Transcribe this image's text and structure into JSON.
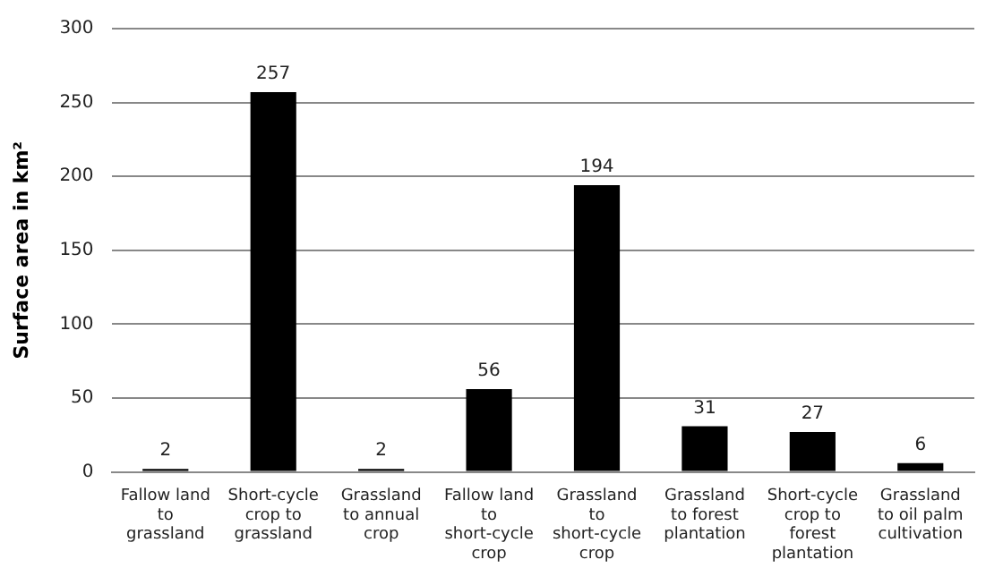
{
  "chart_data": {
    "type": "bar",
    "ylabel": "Surface area in km²",
    "categories": [
      "Fallow land to grassland",
      "Short-cycle crop to grassland",
      "Grassland to annual crop",
      "Fallow land to short-cycle crop",
      "Grassland to short-cycle crop",
      "Grassland to forest plantation",
      "Short-cycle crop to forest plantation",
      "Grassland to oil palm cultivation"
    ],
    "values": [
      2,
      257,
      2,
      56,
      194,
      31,
      27,
      6
    ],
    "color": "#000000",
    "ylim": [
      0,
      300
    ],
    "yticks": [
      0,
      50,
      100,
      150,
      200,
      250,
      300
    ],
    "grid": "y",
    "data_labels": true,
    "legend": false
  }
}
